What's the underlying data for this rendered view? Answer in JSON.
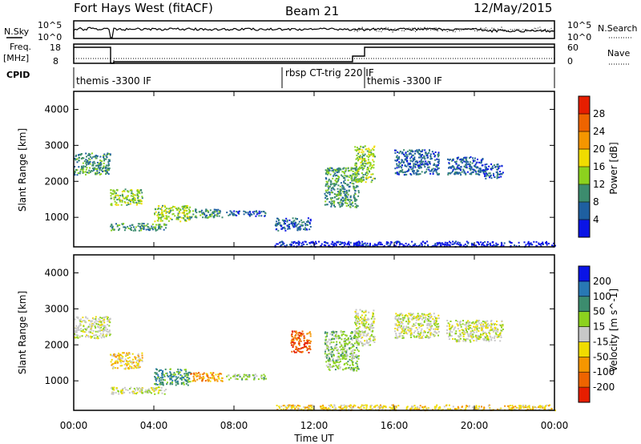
{
  "header": {
    "station": "Fort Hays West (fitACF)",
    "beam": "Beam 21",
    "date": "12/May/2015"
  },
  "status_panels": {
    "nsky_label": "N.Sky",
    "nsky_ticks": [
      "10^5",
      "10^0"
    ],
    "nsearch_label": "N.Search",
    "freq_label": "Freq.",
    "freq_unit": "[MHz]",
    "freq_ticks": [
      "18",
      "8"
    ],
    "nave_label": "Nave",
    "nave_ticks": [
      "60",
      "0"
    ],
    "cpid_label": "CPID",
    "cpid_segments": [
      {
        "label": "themis -3300 IF",
        "start_hour": 0.0
      },
      {
        "label": "rbsp CT-trig 220 IF",
        "start_hour": 10.4
      },
      {
        "label": "themis -3300 IF",
        "start_hour": 14.5
      }
    ]
  },
  "chart_data": [
    {
      "type": "heatmap",
      "name": "power",
      "xlabel": "",
      "ylabel": "Slant Range [km]",
      "xlim": [
        0,
        24
      ],
      "ylim": [
        180,
        4500
      ],
      "yticks": [
        "1000",
        "2000",
        "3000",
        "4000"
      ],
      "colorbar_label": "Power [dB]",
      "colorbar_ticks": [
        "4",
        "8",
        "12",
        "16",
        "20",
        "24",
        "28"
      ],
      "colorbar_colors": [
        "#0a14e6",
        "#1e5fa0",
        "#3c8c6e",
        "#8cd21e",
        "#f0dc00",
        "#f59600",
        "#ee6400",
        "#e61e00"
      ],
      "regions": [
        {
          "hours": [
            0.0,
            1.8
          ],
          "range_km": [
            2200,
            2800
          ],
          "level": 2
        },
        {
          "hours": [
            1.8,
            3.4
          ],
          "range_km": [
            1350,
            1800
          ],
          "level": 3
        },
        {
          "hours": [
            1.8,
            4.6
          ],
          "range_km": [
            650,
            850
          ],
          "level": 2
        },
        {
          "hours": [
            4.0,
            5.8
          ],
          "range_km": [
            900,
            1350
          ],
          "level": 3
        },
        {
          "hours": [
            5.8,
            7.4
          ],
          "range_km": [
            1000,
            1250
          ],
          "level": 2
        },
        {
          "hours": [
            7.6,
            9.6
          ],
          "range_km": [
            1050,
            1200
          ],
          "level": 1
        },
        {
          "hours": [
            10.0,
            11.8
          ],
          "range_km": [
            650,
            1000
          ],
          "level": 1
        },
        {
          "hours": [
            12.5,
            14.2
          ],
          "range_km": [
            1300,
            2400
          ],
          "level": 2
        },
        {
          "hours": [
            14.0,
            15.0
          ],
          "range_km": [
            2000,
            3000
          ],
          "level": 3
        },
        {
          "hours": [
            16.0,
            18.2
          ],
          "range_km": [
            2200,
            2900
          ],
          "level": 1
        },
        {
          "hours": [
            18.6,
            20.4
          ],
          "range_km": [
            2200,
            2700
          ],
          "level": 1
        },
        {
          "hours": [
            20.4,
            21.4
          ],
          "range_km": [
            2100,
            2500
          ],
          "level": 1
        },
        {
          "hours": [
            10.0,
            24.0
          ],
          "range_km": [
            200,
            350
          ],
          "level": 0
        }
      ]
    },
    {
      "type": "heatmap",
      "name": "velocity",
      "xlabel": "Time UT",
      "ylabel": "Slant Range [km]",
      "xlim": [
        0,
        24
      ],
      "ylim": [
        180,
        4500
      ],
      "xticks": [
        "00:00",
        "04:00",
        "08:00",
        "12:00",
        "16:00",
        "20:00",
        "00:00"
      ],
      "yticks": [
        "1000",
        "2000",
        "3000",
        "4000"
      ],
      "colorbar_label": "Velocity [m s^-1]",
      "colorbar_ticks": [
        "200",
        "100",
        "50",
        "15",
        "-15",
        "-50",
        "-100",
        "-200"
      ],
      "colorbar_colors": [
        "#0a14e6",
        "#2878b4",
        "#3c8c6e",
        "#8cd21e",
        "#c8c8c8",
        "#f0dc00",
        "#f59600",
        "#ee6400",
        "#e61e00"
      ],
      "regions": [
        {
          "hours": [
            0.0,
            1.8
          ],
          "range_km": [
            2200,
            2800
          ],
          "level": 4
        },
        {
          "hours": [
            1.8,
            3.4
          ],
          "range_km": [
            1350,
            1800
          ],
          "level": 5
        },
        {
          "hours": [
            1.8,
            4.6
          ],
          "range_km": [
            650,
            850
          ],
          "level": 4
        },
        {
          "hours": [
            4.0,
            5.8
          ],
          "range_km": [
            900,
            1350
          ],
          "level": 2
        },
        {
          "hours": [
            5.8,
            7.4
          ],
          "range_km": [
            1000,
            1250
          ],
          "level": 6
        },
        {
          "hours": [
            7.6,
            9.6
          ],
          "range_km": [
            1050,
            1200
          ],
          "level": 3
        },
        {
          "hours": [
            10.8,
            11.8
          ],
          "range_km": [
            1800,
            2400
          ],
          "level": 7
        },
        {
          "hours": [
            12.5,
            14.2
          ],
          "range_km": [
            1300,
            2400
          ],
          "level": 3
        },
        {
          "hours": [
            14.0,
            15.0
          ],
          "range_km": [
            2000,
            3000
          ],
          "level": 4
        },
        {
          "hours": [
            16.0,
            18.2
          ],
          "range_km": [
            2200,
            2900
          ],
          "level": 4
        },
        {
          "hours": [
            18.6,
            21.4
          ],
          "range_km": [
            2100,
            2700
          ],
          "level": 4
        },
        {
          "hours": [
            10.0,
            24.0
          ],
          "range_km": [
            200,
            350
          ],
          "level": 5
        }
      ]
    }
  ]
}
